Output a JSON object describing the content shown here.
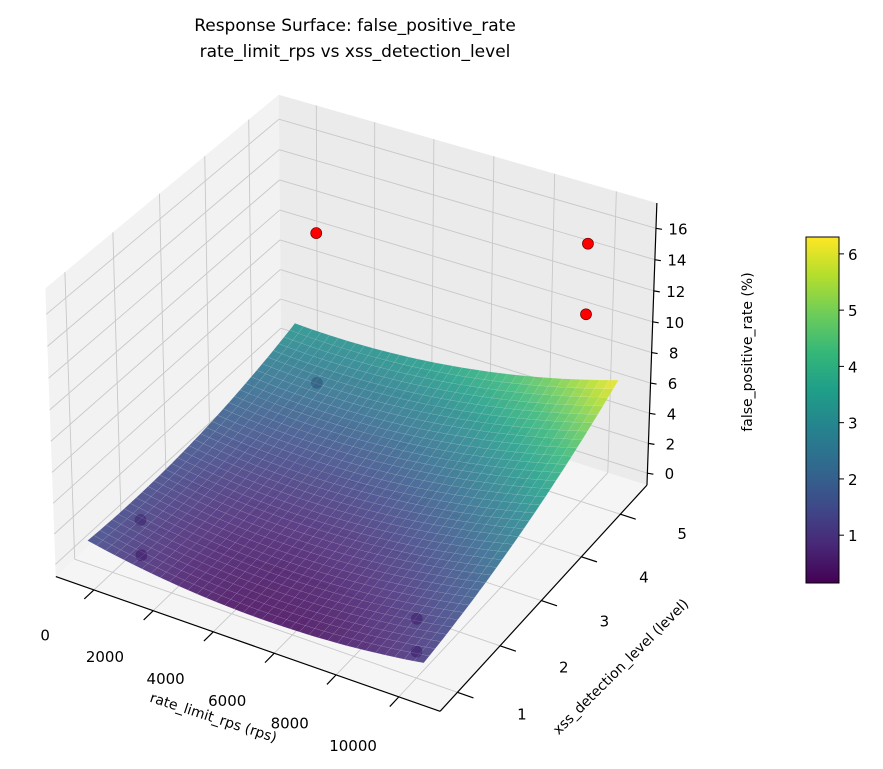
{
  "chart_data": {
    "type": "surface3d",
    "title": "Response Surface: false_positive_rate",
    "subtitle": "rate_limit_rps vs xss_detection_level",
    "xlabel": "rate_limit_rps (rps)",
    "ylabel": "xss_detection_level (level)",
    "zlabel": "false_positive_rate (%)",
    "colorbar_label": "false_positive_rate (%)",
    "colormap": "viridis",
    "xlim": [
      -1300,
      11300
    ],
    "ylim": [
      0.6,
      5.7
    ],
    "zlim": [
      -0.8,
      17.6
    ],
    "x_ticks": [
      "0",
      "2000",
      "4000",
      "6000",
      "8000",
      "10000"
    ],
    "y_ticks": [
      "1",
      "2",
      "3",
      "4",
      "5"
    ],
    "z_ticks": [
      "0",
      "2",
      "4",
      "6",
      "8",
      "10",
      "12",
      "14",
      "16"
    ],
    "colorbar_range": [
      0.15,
      6.3
    ],
    "colorbar_ticks": [
      "1",
      "2",
      "3",
      "4",
      "5",
      "6"
    ],
    "grid": true,
    "surface": {
      "x_range": [
        -500,
        10500
      ],
      "y_range": [
        0.8,
        5.5
      ],
      "min_value": 0.2,
      "corner_values": {
        "xmin_ymin": 1.5,
        "xmax_ymin": 1.1,
        "xmin_ymax": 3.3,
        "xmax_ymax": 6.2
      }
    },
    "points": [
      {
        "x": 1000,
        "y": 1,
        "z": 1.0,
        "above_surface": false
      },
      {
        "x": 1000,
        "y": 1,
        "z": 3.3,
        "above_surface": false
      },
      {
        "x": 10000,
        "y": 1,
        "z": 0.9,
        "above_surface": false
      },
      {
        "x": 10000,
        "y": 1,
        "z": 3.0,
        "above_surface": false
      },
      {
        "x": 1000,
        "y": 5,
        "z": 1.5,
        "above_surface": false
      },
      {
        "x": 1000,
        "y": 5,
        "z": 11.5,
        "above_surface": true
      },
      {
        "x": 10000,
        "y": 5,
        "z": 16.0,
        "above_surface": true
      },
      {
        "x": 10000,
        "y": 5,
        "z": 11.5,
        "above_surface": true
      }
    ],
    "point_color_above": "#ff0000",
    "point_color_below": "#6a1f5a",
    "pane_colors": [
      "#f2f2f2",
      "#ebebeb",
      "#f5f5f5"
    ]
  }
}
